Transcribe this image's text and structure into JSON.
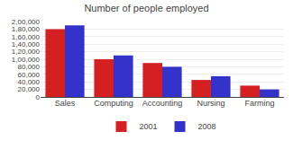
{
  "chart_data": {
    "type": "bar",
    "title": "Number of people employed",
    "categories": [
      "Sales",
      "Computing",
      "Accounting",
      "Nursing",
      "Farming"
    ],
    "series": [
      {
        "name": "2001",
        "color": "#d42020",
        "values": [
          180000,
          100000,
          90000,
          45000,
          30000
        ]
      },
      {
        "name": "2008",
        "color": "#3333cc",
        "values": [
          190000,
          110000,
          80000,
          55000,
          20000
        ]
      }
    ],
    "ylim": [
      0,
      200000
    ],
    "yticks": [
      0,
      {
        "value": 20000,
        "label": "20,000"
      },
      {
        "value": 40000,
        "label": "40,000"
      },
      {
        "value": 60000,
        "label": "60,000"
      },
      {
        "value": 80000,
        "label": "80,000"
      },
      {
        "value": 100000,
        "label": "1,00,000"
      },
      {
        "value": 120000,
        "label": "1,20,000"
      },
      {
        "value": 140000,
        "label": "1,40,000"
      },
      {
        "value": 160000,
        "label": "1,60,000"
      },
      {
        "value": 180000,
        "label": "1,80,000"
      },
      {
        "value": 200000,
        "label": "2,00,000"
      }
    ],
    "grid": true,
    "legend": "bottom"
  }
}
